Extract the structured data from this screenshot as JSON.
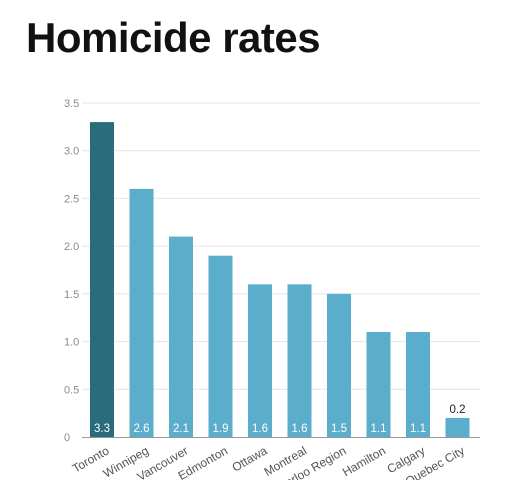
{
  "title": "Homicide rates",
  "chart_data": {
    "type": "bar",
    "title": "Homicide rates",
    "xlabel": "",
    "ylabel": "",
    "ylim": [
      0,
      3.5
    ],
    "yticks": [
      "0",
      "0.5",
      "1.0",
      "1.5",
      "2.0",
      "2.5",
      "3.0",
      "3.5"
    ],
    "grid": true,
    "categories": [
      "Toronto",
      "Winnipeg",
      "Vancouver",
      "Edmonton",
      "Ottawa",
      "Montreal",
      "Waterloo Region",
      "Hamilton",
      "Calgary",
      "Quebec City"
    ],
    "values": [
      3.3,
      2.6,
      2.1,
      1.9,
      1.6,
      1.6,
      1.5,
      1.1,
      1.1,
      0.2
    ],
    "value_labels": [
      "3.3",
      "2.6",
      "2.1",
      "1.9",
      "1.6",
      "1.6",
      "1.5",
      "1.1",
      "1.1",
      "0.2"
    ],
    "colors": {
      "highlight": "#2a6b7c",
      "bar": "#5aaecb",
      "grid": "#e4e4e4",
      "axis": "#999999"
    }
  }
}
